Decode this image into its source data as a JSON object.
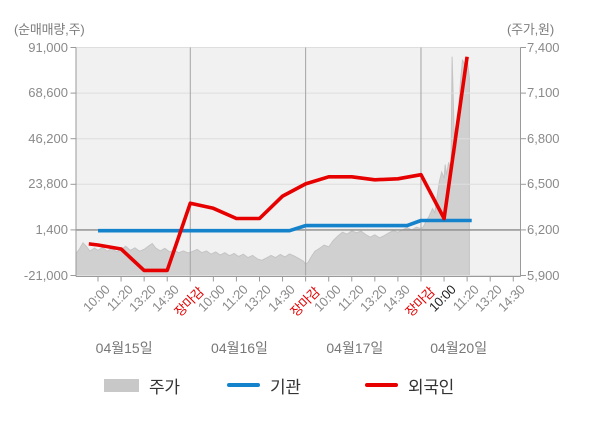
{
  "chart_data": {
    "type": "mixed",
    "left_axis": {
      "title": "(순매매량,주)",
      "range": [
        -21000,
        91000
      ],
      "ticks": [
        {
          "v": 91000,
          "label": "91,000"
        },
        {
          "v": 68600,
          "label": "68,600"
        },
        {
          "v": 46200,
          "label": "46,200"
        },
        {
          "v": 23800,
          "label": "23,800"
        },
        {
          "v": 1400,
          "label": "1,400",
          "ref": true
        },
        {
          "v": -21000,
          "label": "-21,000"
        }
      ]
    },
    "right_axis": {
      "title": "(주가,원)",
      "range": [
        5900,
        7400
      ],
      "ticks": [
        {
          "v": 7400,
          "label": "7,400"
        },
        {
          "v": 7100,
          "label": "7,100"
        },
        {
          "v": 6800,
          "label": "6,800"
        },
        {
          "v": 6500,
          "label": "6,500"
        },
        {
          "v": 6200,
          "label": "6,200",
          "ref": true
        },
        {
          "v": 5900,
          "label": "5,900"
        }
      ]
    },
    "x_ticks": [
      {
        "label": "10:00"
      },
      {
        "label": "11:20"
      },
      {
        "label": "13:20"
      },
      {
        "label": "14:30"
      },
      {
        "label": "장마감",
        "close": true
      },
      {
        "label": "10:00"
      },
      {
        "label": "11:20"
      },
      {
        "label": "13:20"
      },
      {
        "label": "14:30"
      },
      {
        "label": "장마감",
        "close": true
      },
      {
        "label": "10:00"
      },
      {
        "label": "11:20"
      },
      {
        "label": "13:20"
      },
      {
        "label": "14:30"
      },
      {
        "label": "장마감",
        "close": true
      },
      {
        "label": "10:00",
        "strong": true
      },
      {
        "label": "11:20"
      },
      {
        "label": "13:20"
      },
      {
        "label": "14:30"
      }
    ],
    "dates": [
      "04월15일",
      "04월16일",
      "04월17일",
      "04월20일"
    ],
    "series": [
      {
        "name": "주가",
        "type": "area",
        "axis": "right",
        "color": "#d0d0d0",
        "edge": "#c4c4c4",
        "points": [
          [
            -0.95,
            6045
          ],
          [
            -0.8,
            6075
          ],
          [
            -0.65,
            6115
          ],
          [
            -0.5,
            6090
          ],
          [
            -0.35,
            6060
          ],
          [
            -0.15,
            6080
          ],
          [
            0,
            6065
          ],
          [
            0.2,
            6085
          ],
          [
            0.4,
            6060
          ],
          [
            0.6,
            6078
          ],
          [
            0.8,
            6055
          ],
          [
            1.0,
            6070
          ],
          [
            1.2,
            6092
          ],
          [
            1.4,
            6065
          ],
          [
            1.6,
            6082
          ],
          [
            1.8,
            6060
          ],
          [
            2.0,
            6072
          ],
          [
            2.2,
            6095
          ],
          [
            2.35,
            6110
          ],
          [
            2.5,
            6080
          ],
          [
            2.7,
            6062
          ],
          [
            2.9,
            6078
          ],
          [
            3.1,
            6055
          ],
          [
            3.3,
            6068
          ],
          [
            3.5,
            6050
          ],
          [
            3.7,
            6062
          ],
          [
            3.9,
            6048
          ],
          [
            4.1,
            6058
          ],
          [
            4.3,
            6072
          ],
          [
            4.5,
            6050
          ],
          [
            4.7,
            6062
          ],
          [
            4.9,
            6040
          ],
          [
            5.1,
            6055
          ],
          [
            5.3,
            6035
          ],
          [
            5.5,
            6050
          ],
          [
            5.7,
            6030
          ],
          [
            5.9,
            6045
          ],
          [
            6.1,
            6025
          ],
          [
            6.3,
            6040
          ],
          [
            6.5,
            6018
          ],
          [
            6.7,
            6032
          ],
          [
            6.9,
            6010
          ],
          [
            7.1,
            6000
          ],
          [
            7.3,
            6015
          ],
          [
            7.5,
            6032
          ],
          [
            7.7,
            6018
          ],
          [
            7.9,
            6038
          ],
          [
            8.1,
            6022
          ],
          [
            8.3,
            6042
          ],
          [
            8.5,
            6028
          ],
          [
            8.7,
            6012
          ],
          [
            8.9,
            5995
          ],
          [
            9.0,
            5975
          ],
          [
            9.1,
            5985
          ],
          [
            9.25,
            6025
          ],
          [
            9.4,
            6060
          ],
          [
            9.6,
            6078
          ],
          [
            9.8,
            6100
          ],
          [
            10.0,
            6088
          ],
          [
            10.2,
            6130
          ],
          [
            10.4,
            6160
          ],
          [
            10.6,
            6185
          ],
          [
            10.8,
            6172
          ],
          [
            11.0,
            6195
          ],
          [
            11.2,
            6180
          ],
          [
            11.4,
            6192
          ],
          [
            11.6,
            6170
          ],
          [
            11.8,
            6152
          ],
          [
            12.0,
            6168
          ],
          [
            12.2,
            6148
          ],
          [
            12.4,
            6162
          ],
          [
            12.6,
            6180
          ],
          [
            12.8,
            6195
          ],
          [
            13.0,
            6185
          ],
          [
            13.2,
            6200
          ],
          [
            13.4,
            6215
          ],
          [
            13.6,
            6200
          ],
          [
            13.8,
            6218
          ],
          [
            14.0,
            6208
          ],
          [
            14.1,
            6220
          ],
          [
            14.2,
            6252
          ],
          [
            14.35,
            6290
          ],
          [
            14.5,
            6340
          ],
          [
            14.6,
            6312
          ],
          [
            14.7,
            6420
          ],
          [
            14.8,
            6520
          ],
          [
            14.9,
            6580
          ],
          [
            15.0,
            6540
          ],
          [
            15.05,
            6630
          ],
          [
            15.1,
            6560
          ],
          [
            15.2,
            6645
          ],
          [
            15.3,
            6592
          ],
          [
            15.35,
            7340
          ],
          [
            15.45,
            6780
          ],
          [
            15.5,
            6700
          ],
          [
            15.6,
            6905
          ],
          [
            15.7,
            7150
          ],
          [
            15.8,
            7320
          ],
          [
            15.9,
            7285
          ],
          [
            16.0,
            7330
          ],
          [
            16.1,
            7200
          ]
        ]
      },
      {
        "name": "기관",
        "type": "line",
        "axis": "left",
        "color": "#1583cb",
        "points": [
          [
            0,
            1000
          ],
          [
            1,
            1000
          ],
          [
            2,
            1000
          ],
          [
            3,
            1000
          ],
          [
            4,
            1000
          ],
          [
            5,
            1000
          ],
          [
            6,
            1000
          ],
          [
            7,
            1000
          ],
          [
            8,
            1000
          ],
          [
            8.3,
            1000
          ],
          [
            9,
            3500
          ],
          [
            10,
            3500
          ],
          [
            11,
            3500
          ],
          [
            12,
            3500
          ],
          [
            13,
            3500
          ],
          [
            13.4,
            3500
          ],
          [
            14,
            6000
          ],
          [
            15,
            6000
          ],
          [
            16,
            6000
          ],
          [
            16.2,
            6000
          ]
        ]
      },
      {
        "name": "외국인",
        "type": "line",
        "axis": "left",
        "color": "#e60000",
        "points": [
          [
            -0.4,
            -5500
          ],
          [
            0,
            -6000
          ],
          [
            1,
            -8000
          ],
          [
            2,
            -18500
          ],
          [
            3,
            -18500
          ],
          [
            4,
            14500
          ],
          [
            5,
            12000
          ],
          [
            6,
            7000
          ],
          [
            7,
            7000
          ],
          [
            8,
            18000
          ],
          [
            9,
            24000
          ],
          [
            10,
            27500
          ],
          [
            11,
            27500
          ],
          [
            12,
            26000
          ],
          [
            13,
            26500
          ],
          [
            14,
            28500
          ],
          [
            15,
            7000
          ],
          [
            16,
            86500
          ]
        ]
      }
    ]
  },
  "legend": [
    {
      "label": "주가",
      "swatch": "area",
      "color": "#c8c8c8"
    },
    {
      "label": "기관",
      "swatch": "line",
      "color": "#1583cb"
    },
    {
      "label": "외국인",
      "swatch": "line",
      "color": "#e60000"
    }
  ]
}
